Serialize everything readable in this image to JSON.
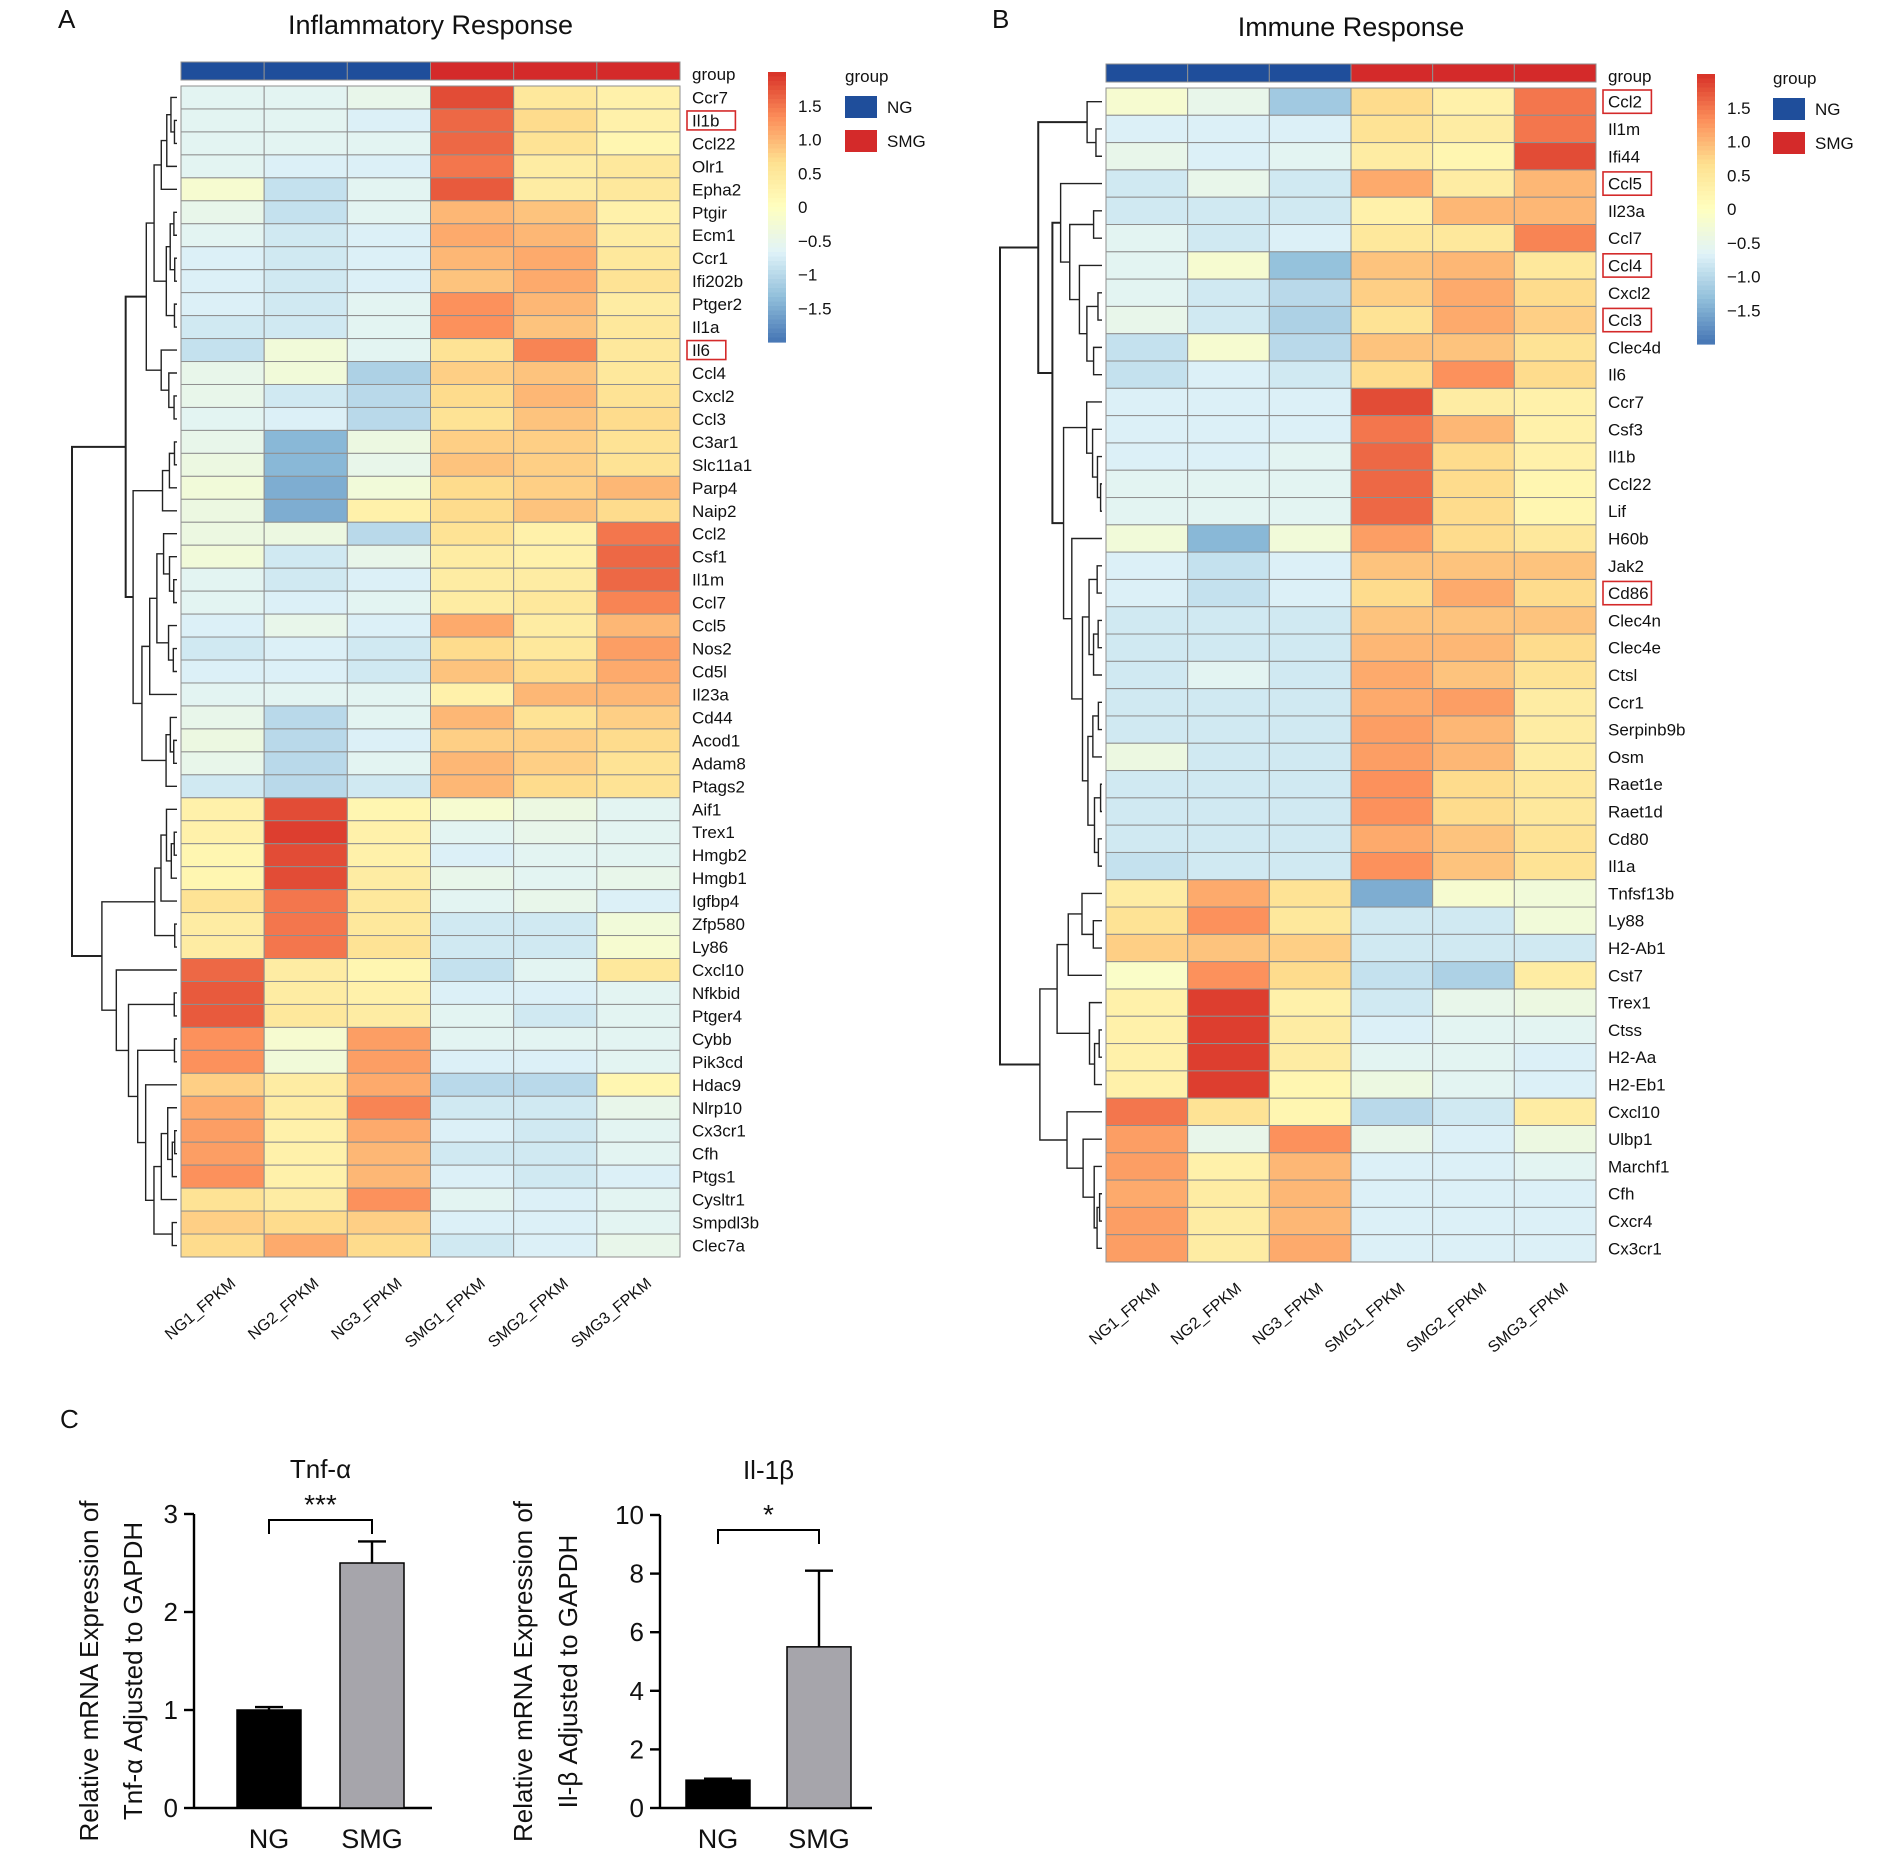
{
  "panels": {
    "A": "A",
    "B": "B",
    "C": "C"
  },
  "colorscale": [
    "#4575b4",
    "#91bfdb",
    "#e0f3f8",
    "#ffffbf",
    "#fee090",
    "#fc8d59",
    "#d73027"
  ],
  "group_colors": {
    "NG": "#1f4e9b",
    "SMG": "#d42a2a"
  },
  "chart_data": [
    {
      "type": "heatmap",
      "title": "Inflammatory Response",
      "columns": [
        "NG1_FPKM",
        "NG2_FPKM",
        "NG3_FPKM",
        "SMG1_FPKM",
        "SMG2_FPKM",
        "SMG3_FPKM"
      ],
      "column_groups": [
        "NG",
        "NG",
        "NG",
        "SMG",
        "SMG",
        "SMG"
      ],
      "group_label": "group",
      "legend": {
        "title": "group",
        "entries": [
          "NG",
          "SMG"
        ]
      },
      "color_range": [
        -2,
        2
      ],
      "colorbar_ticks": [
        "1.5",
        "1.0",
        "0.5",
        "0",
        "−0.5",
        "−1",
        "−1.5"
      ],
      "colorbar_values": [
        1.5,
        1.0,
        0.5,
        0,
        -0.5,
        -1,
        -1.5
      ],
      "highlighted": [
        "Il1b",
        "Il6"
      ],
      "rows": [
        "Ccr7",
        "Il1b",
        "Ccl22",
        "Olr1",
        "Epha2",
        "Ptgir",
        "Ecm1",
        "Ccr1",
        "Ifi202b",
        "Ptger2",
        "Il1a",
        "Il6",
        "Ccl4",
        "Cxcl2",
        "Ccl3",
        "C3ar1",
        "Slc11a1",
        "Parp4",
        "Naip2",
        "Ccl2",
        "Csf1",
        "Il1m",
        "Ccl7",
        "Ccl5",
        "Nos2",
        "Cd5l",
        "Il23a",
        "Cd44",
        "Acod1",
        "Adam8",
        "Ptags2",
        "Aif1",
        "Trex1",
        "Hmgb2",
        "Hmgb1",
        "Igfbp4",
        "Zfp580",
        "Ly86",
        "Cxcl10",
        "Nfkbid",
        "Ptger4",
        "Cybb",
        "Pik3cd",
        "Hdac9",
        "Nlrp10",
        "Cx3cr1",
        "Cfh",
        "Ptgs1",
        "Cysltr1",
        "Smpdl3b",
        "Clec7a"
      ],
      "values": [
        [
          -0.6,
          -0.6,
          -0.5,
          1.8,
          0.5,
          0.3
        ],
        [
          -0.6,
          -0.6,
          -0.7,
          1.6,
          0.7,
          0.3
        ],
        [
          -0.6,
          -0.6,
          -0.6,
          1.6,
          0.6,
          0.2
        ],
        [
          -0.6,
          -0.7,
          -0.7,
          1.5,
          0.4,
          0.5
        ],
        [
          -0.2,
          -0.9,
          -0.6,
          1.7,
          0.4,
          0.5
        ],
        [
          -0.5,
          -0.9,
          -0.6,
          1.0,
          0.9,
          0.3
        ],
        [
          -0.6,
          -0.8,
          -0.7,
          1.1,
          1.0,
          0.4
        ],
        [
          -0.7,
          -0.8,
          -0.7,
          1.0,
          1.1,
          0.5
        ],
        [
          -0.7,
          -0.8,
          -0.7,
          0.9,
          1.1,
          0.6
        ],
        [
          -0.7,
          -0.8,
          -0.6,
          1.3,
          1.0,
          0.4
        ],
        [
          -0.8,
          -0.8,
          -0.6,
          1.3,
          0.9,
          0.5
        ],
        [
          -0.9,
          -0.3,
          -0.6,
          0.6,
          1.4,
          0.5
        ],
        [
          -0.5,
          -0.3,
          -1.1,
          0.8,
          0.9,
          0.5
        ],
        [
          -0.5,
          -0.8,
          -1.0,
          0.7,
          1.0,
          0.6
        ],
        [
          -0.6,
          -0.7,
          -1.0,
          0.6,
          0.9,
          0.7
        ],
        [
          -0.5,
          -1.4,
          -0.4,
          0.8,
          0.8,
          0.6
        ],
        [
          -0.4,
          -1.4,
          -0.5,
          0.9,
          0.8,
          0.6
        ],
        [
          -0.3,
          -1.5,
          -0.3,
          0.7,
          0.8,
          1.0
        ],
        [
          -0.4,
          -1.5,
          0.3,
          0.7,
          0.9,
          0.7
        ],
        [
          -0.4,
          -0.4,
          -1.0,
          0.6,
          0.3,
          1.5
        ],
        [
          -0.3,
          -0.8,
          -0.5,
          0.4,
          0.3,
          1.6
        ],
        [
          -0.6,
          -0.8,
          -0.7,
          0.4,
          0.4,
          1.6
        ],
        [
          -0.6,
          -0.7,
          -0.6,
          0.4,
          0.5,
          1.4
        ],
        [
          -0.7,
          -0.5,
          -0.7,
          1.1,
          0.4,
          1.0
        ],
        [
          -0.8,
          -0.7,
          -0.8,
          0.7,
          0.5,
          1.2
        ],
        [
          -0.7,
          -0.7,
          -0.8,
          0.9,
          0.7,
          1.1
        ],
        [
          -0.6,
          -0.6,
          -0.6,
          0.3,
          1.0,
          1.0
        ],
        [
          -0.5,
          -1.0,
          -0.6,
          1.0,
          0.6,
          0.8
        ],
        [
          -0.4,
          -1.0,
          -0.7,
          0.8,
          0.8,
          0.7
        ],
        [
          -0.5,
          -1.0,
          -0.6,
          1.0,
          0.8,
          0.6
        ],
        [
          -0.8,
          -1.0,
          -0.8,
          1.0,
          0.7,
          0.6
        ],
        [
          0.3,
          1.8,
          0.2,
          -0.2,
          -0.4,
          -0.6
        ],
        [
          0.3,
          1.9,
          0.3,
          -0.6,
          -0.5,
          -0.6
        ],
        [
          0.2,
          1.8,
          0.3,
          -0.7,
          -0.6,
          -0.6
        ],
        [
          0.2,
          1.8,
          0.4,
          -0.5,
          -0.6,
          -0.5
        ],
        [
          0.6,
          1.5,
          0.5,
          -0.6,
          -0.5,
          -0.7
        ],
        [
          0.4,
          1.5,
          0.5,
          -0.8,
          -0.8,
          -0.3
        ],
        [
          0.4,
          1.5,
          0.6,
          -0.8,
          -0.8,
          -0.2
        ],
        [
          1.6,
          0.4,
          0.2,
          -0.9,
          -0.6,
          0.5
        ],
        [
          1.7,
          0.4,
          0.3,
          -0.7,
          -0.7,
          -0.6
        ],
        [
          1.7,
          0.5,
          0.4,
          -0.6,
          -0.8,
          -0.6
        ],
        [
          1.3,
          -0.2,
          1.2,
          -0.6,
          -0.6,
          -0.6
        ],
        [
          1.3,
          -0.3,
          1.2,
          -0.7,
          -0.7,
          -0.6
        ],
        [
          0.8,
          0.4,
          1.1,
          -1.0,
          -1.0,
          0.2
        ],
        [
          1.1,
          0.4,
          1.4,
          -0.8,
          -0.8,
          -0.5
        ],
        [
          1.2,
          0.3,
          1.1,
          -0.7,
          -0.8,
          -0.6
        ],
        [
          1.2,
          0.3,
          1.0,
          -0.8,
          -0.8,
          -0.6
        ],
        [
          1.3,
          0.3,
          1.0,
          -0.7,
          -0.8,
          -0.7
        ],
        [
          0.6,
          0.4,
          1.3,
          -0.6,
          -0.7,
          -0.6
        ],
        [
          0.8,
          0.7,
          0.8,
          -0.7,
          -0.7,
          -0.6
        ],
        [
          0.7,
          1.1,
          0.7,
          -0.8,
          -0.7,
          -0.5
        ]
      ]
    },
    {
      "type": "heatmap",
      "title": "Immune Response",
      "columns": [
        "NG1_FPKM",
        "NG2_FPKM",
        "NG3_FPKM",
        "SMG1_FPKM",
        "SMG2_FPKM",
        "SMG3_FPKM"
      ],
      "column_groups": [
        "NG",
        "NG",
        "NG",
        "SMG",
        "SMG",
        "SMG"
      ],
      "group_label": "group",
      "legend": {
        "title": "group",
        "entries": [
          "NG",
          "SMG"
        ]
      },
      "color_range": [
        -2,
        2
      ],
      "colorbar_ticks": [
        "1.5",
        "1.0",
        "0.5",
        "0",
        "−0.5",
        "−1.0",
        "−1.5"
      ],
      "colorbar_values": [
        1.5,
        1.0,
        0.5,
        0,
        -0.5,
        -1.0,
        -1.5
      ],
      "highlighted": [
        "Ccl2",
        "Ccl5",
        "Ccl4",
        "Ccl3",
        "Cd86"
      ],
      "rows": [
        "Ccl2",
        "Il1m",
        "Ifi44",
        "Ccl5",
        "Il23a",
        "Ccl7",
        "Ccl4",
        "Cxcl2",
        "Ccl3",
        "Clec4d",
        "Il6",
        "Ccr7",
        "Csf3",
        "Il1b",
        "Ccl22",
        "Lif",
        "H60b",
        "Jak2",
        "Cd86",
        "Clec4n",
        "Clec4e",
        "Ctsl",
        "Ccr1",
        "Serpinb9b",
        "Osm",
        "Raet1e",
        "Raet1d",
        "Cd80",
        "Il1a",
        "Tnfsf13b",
        "Ly88",
        "H2-Ab1",
        "Cst7",
        "Trex1",
        "Ctss",
        "H2-Aa",
        "H2-Eb1",
        "Cxcl10",
        "Ulbp1",
        "Marchf1",
        "Cfh",
        "Cxcr4",
        "Cx3cr1"
      ],
      "values": [
        [
          -0.2,
          -0.5,
          -1.2,
          0.7,
          0.3,
          1.5
        ],
        [
          -0.7,
          -0.7,
          -0.7,
          0.6,
          0.4,
          1.5
        ],
        [
          -0.5,
          -0.7,
          -0.6,
          0.4,
          0.2,
          1.8
        ],
        [
          -0.8,
          -0.5,
          -0.8,
          1.1,
          0.4,
          1.0
        ],
        [
          -0.8,
          -0.8,
          -0.8,
          0.3,
          1.0,
          1.0
        ],
        [
          -0.6,
          -0.8,
          -0.7,
          0.5,
          0.5,
          1.4
        ],
        [
          -0.6,
          -0.2,
          -1.3,
          0.9,
          1.0,
          0.5
        ],
        [
          -0.6,
          -0.8,
          -1.0,
          0.8,
          1.1,
          0.7
        ],
        [
          -0.5,
          -0.8,
          -1.1,
          0.6,
          1.1,
          0.8
        ],
        [
          -0.9,
          -0.2,
          -1.0,
          0.9,
          0.9,
          0.6
        ],
        [
          -0.9,
          -0.7,
          -0.8,
          0.7,
          1.3,
          0.7
        ],
        [
          -0.7,
          -0.7,
          -0.7,
          1.8,
          0.4,
          0.3
        ],
        [
          -0.7,
          -0.7,
          -0.7,
          1.5,
          1.0,
          0.3
        ],
        [
          -0.7,
          -0.7,
          -0.6,
          1.6,
          0.7,
          0.3
        ],
        [
          -0.6,
          -0.6,
          -0.6,
          1.6,
          0.7,
          0.2
        ],
        [
          -0.6,
          -0.6,
          -0.6,
          1.6,
          0.7,
          0.2
        ],
        [
          -0.3,
          -1.4,
          -0.3,
          1.2,
          0.7,
          0.5
        ],
        [
          -0.7,
          -0.9,
          -0.7,
          0.9,
          0.9,
          0.9
        ],
        [
          -0.7,
          -0.9,
          -0.7,
          0.7,
          1.1,
          0.7
        ],
        [
          -0.8,
          -0.8,
          -0.8,
          0.9,
          0.9,
          0.9
        ],
        [
          -0.8,
          -0.8,
          -0.8,
          1.0,
          1.0,
          0.7
        ],
        [
          -0.8,
          -0.6,
          -0.8,
          1.1,
          0.9,
          0.6
        ],
        [
          -0.8,
          -0.8,
          -0.8,
          1.1,
          1.2,
          0.4
        ],
        [
          -0.8,
          -0.8,
          -0.8,
          1.2,
          1.0,
          0.4
        ],
        [
          -0.4,
          -0.8,
          -0.8,
          1.2,
          1.0,
          0.4
        ],
        [
          -0.8,
          -0.8,
          -0.8,
          1.3,
          0.7,
          0.5
        ],
        [
          -0.8,
          -0.8,
          -0.8,
          1.3,
          0.7,
          0.5
        ],
        [
          -0.8,
          -0.8,
          -0.8,
          1.1,
          0.9,
          0.6
        ],
        [
          -0.9,
          -0.8,
          -0.8,
          1.3,
          0.9,
          0.6
        ],
        [
          0.4,
          1.1,
          0.6,
          -1.5,
          -0.2,
          -0.3
        ],
        [
          0.6,
          1.3,
          0.5,
          -0.8,
          -0.8,
          -0.3
        ],
        [
          0.8,
          0.9,
          0.8,
          -0.8,
          -0.8,
          -0.8
        ],
        [
          -0.1,
          1.3,
          0.7,
          -0.9,
          -1.1,
          0.4
        ],
        [
          0.3,
          1.9,
          0.3,
          -0.8,
          -0.5,
          -0.4
        ],
        [
          0.3,
          1.9,
          0.4,
          -0.7,
          -0.6,
          -0.6
        ],
        [
          0.3,
          1.9,
          0.4,
          -0.6,
          -0.6,
          -0.7
        ],
        [
          0.3,
          1.9,
          0.2,
          -0.4,
          -0.6,
          -0.7
        ],
        [
          1.5,
          0.6,
          0.2,
          -1.0,
          -0.8,
          0.4
        ],
        [
          1.2,
          -0.5,
          1.3,
          -0.5,
          -0.7,
          -0.4
        ],
        [
          1.2,
          0.3,
          1.0,
          -0.7,
          -0.7,
          -0.6
        ],
        [
          1.1,
          0.4,
          1.0,
          -0.7,
          -0.7,
          -0.7
        ],
        [
          1.2,
          0.4,
          1.0,
          -0.7,
          -0.7,
          -0.7
        ],
        [
          1.2,
          0.4,
          1.1,
          -0.7,
          -0.7,
          -0.7
        ]
      ]
    },
    {
      "type": "bar",
      "title": "Tnf-α",
      "ylabel_line1": "Relative mRNA Expression of",
      "ylabel_line2": "Tnf-α Adjusted to GAPDH",
      "categories": [
        "NG",
        "SMG"
      ],
      "values": [
        1.0,
        2.5
      ],
      "errors": [
        0.03,
        0.22
      ],
      "bar_colors": [
        "#000000",
        "#a6a5ab"
      ],
      "ylim": [
        0,
        3
      ],
      "yticks": [
        0,
        1,
        2,
        3
      ],
      "significance": "***"
    },
    {
      "type": "bar",
      "title": "Il-1β",
      "ylabel_line1": "Relative mRNA Expression of",
      "ylabel_line2": "Il-β Adjusted to GAPDH",
      "categories": [
        "NG",
        "SMG"
      ],
      "values": [
        0.95,
        5.5
      ],
      "errors": [
        0.05,
        2.6
      ],
      "bar_colors": [
        "#000000",
        "#a6a5ab"
      ],
      "ylim": [
        0,
        10
      ],
      "yticks": [
        0,
        2,
        4,
        6,
        8,
        10
      ],
      "significance": "*"
    }
  ]
}
